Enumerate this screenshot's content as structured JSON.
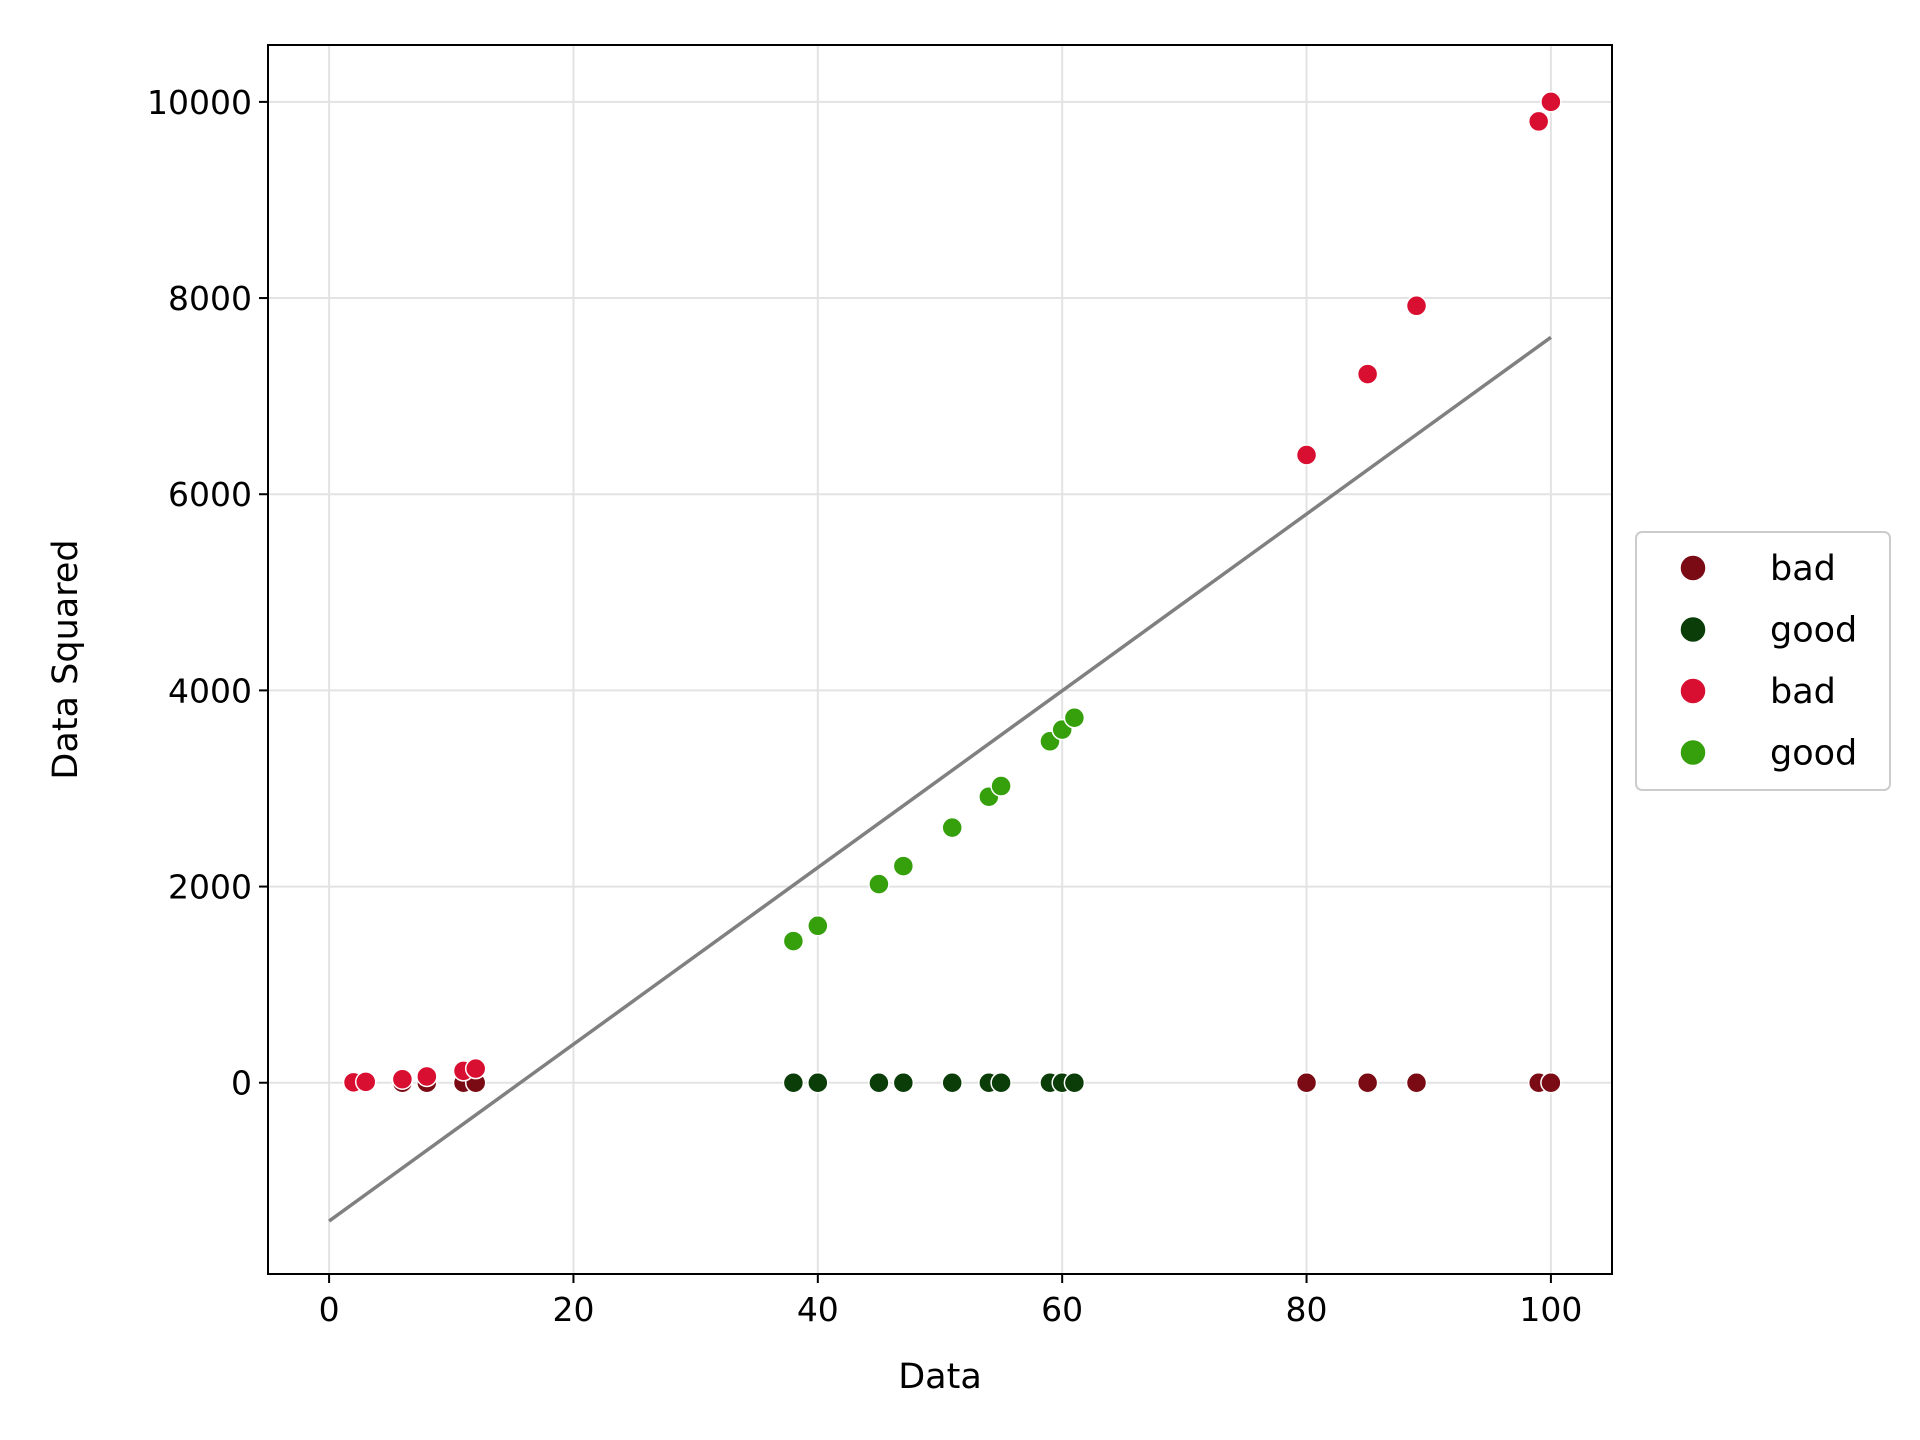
{
  "chart_data": {
    "type": "scatter",
    "xlabel": "Data",
    "ylabel": "Data Squared",
    "xlim": [
      -5,
      105
    ],
    "ylim": [
      -1950,
      10580
    ],
    "xticks": [
      0,
      20,
      40,
      60,
      80,
      100
    ],
    "yticks": [
      0,
      2000,
      4000,
      6000,
      8000,
      10000
    ],
    "grid": true,
    "legend_position": "center-right, outside plot",
    "series": [
      {
        "name": "bad",
        "color": "#7a0b14",
        "points": [
          [
            2,
            0
          ],
          [
            3,
            0
          ],
          [
            6,
            0
          ],
          [
            8,
            0
          ],
          [
            11,
            0
          ],
          [
            12,
            0
          ],
          [
            80,
            0
          ],
          [
            85,
            0
          ],
          [
            89,
            0
          ],
          [
            99,
            0
          ],
          [
            100,
            0
          ]
        ]
      },
      {
        "name": "good",
        "color": "#0b3d08",
        "points": [
          [
            38,
            0
          ],
          [
            40,
            0
          ],
          [
            45,
            0
          ],
          [
            47,
            0
          ],
          [
            51,
            0
          ],
          [
            54,
            0
          ],
          [
            55,
            0
          ],
          [
            59,
            0
          ],
          [
            60,
            0
          ],
          [
            61,
            0
          ]
        ]
      },
      {
        "name": "bad",
        "color": "#d80f30",
        "points": [
          [
            2,
            4
          ],
          [
            3,
            9
          ],
          [
            6,
            36
          ],
          [
            8,
            64
          ],
          [
            11,
            121
          ],
          [
            12,
            144
          ],
          [
            80,
            6400
          ],
          [
            85,
            7225
          ],
          [
            89,
            7921
          ],
          [
            99,
            9801
          ],
          [
            100,
            10000
          ]
        ]
      },
      {
        "name": "good",
        "color": "#35a00c",
        "points": [
          [
            38,
            1444
          ],
          [
            40,
            1600
          ],
          [
            45,
            2025
          ],
          [
            47,
            2209
          ],
          [
            51,
            2601
          ],
          [
            54,
            2916
          ],
          [
            55,
            3025
          ],
          [
            59,
            3481
          ],
          [
            60,
            3600
          ],
          [
            61,
            3721
          ]
        ]
      }
    ],
    "fit_line": {
      "color": "#808080",
      "points": [
        [
          0,
          -1410
        ],
        [
          100,
          7600
        ]
      ]
    }
  }
}
